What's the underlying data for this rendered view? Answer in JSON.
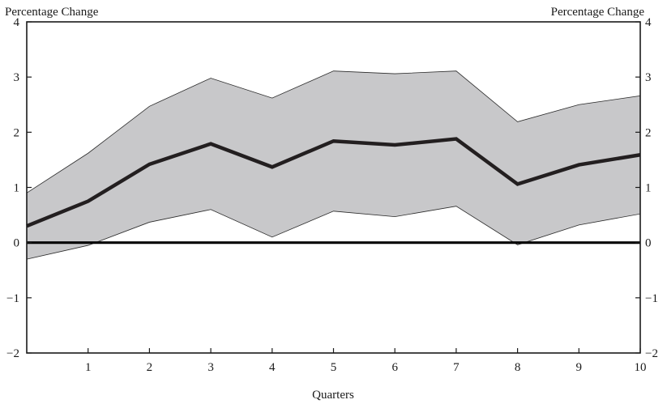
{
  "chart_data": {
    "type": "line",
    "title": "",
    "xlabel": "Quarters",
    "ylabel_left": "Percentage Change",
    "ylabel_right": "Percentage Change",
    "xlim": [
      0,
      10
    ],
    "ylim": [
      -2,
      4
    ],
    "x_ticks": [
      1,
      2,
      3,
      4,
      5,
      6,
      7,
      8,
      9,
      10
    ],
    "y_ticks": [
      -2,
      -1,
      0,
      1,
      2,
      3,
      4
    ],
    "y_tick_labels": [
      "−2",
      "−1",
      "0",
      "1",
      "2",
      "3",
      "4"
    ],
    "x": [
      0,
      1,
      2,
      3,
      4,
      5,
      6,
      7,
      8,
      9,
      10
    ],
    "series": [
      {
        "role": "estimate",
        "values": [
          0.3,
          0.75,
          1.42,
          1.79,
          1.37,
          1.84,
          1.77,
          1.88,
          1.06,
          1.41,
          1.59
        ]
      },
      {
        "role": "upper-band",
        "values": [
          0.9,
          1.62,
          2.47,
          2.98,
          2.62,
          3.11,
          3.06,
          3.11,
          2.19,
          2.5,
          2.66
        ]
      },
      {
        "role": "lower-band",
        "values": [
          -0.3,
          -0.05,
          0.37,
          0.6,
          0.1,
          0.57,
          0.47,
          0.66,
          -0.04,
          0.32,
          0.52
        ]
      }
    ],
    "zero_line": 0,
    "grid": false,
    "colors": {
      "band": "#c8c8ca",
      "line": "#231f20",
      "axis": "#1a1a1a",
      "lower_tint": "#ddd6ee"
    }
  }
}
